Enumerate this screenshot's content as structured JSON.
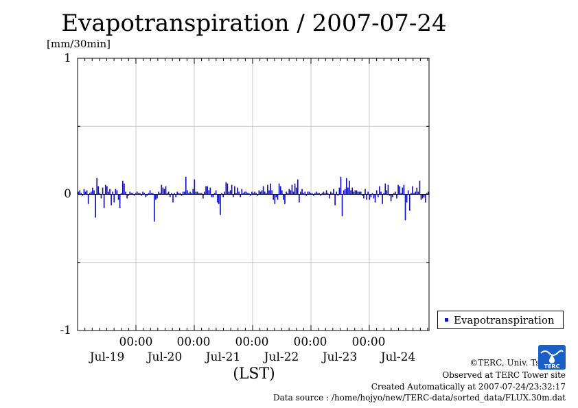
{
  "title": "Evapotranspiration / 2007-07-24",
  "unit_label": "[mm/30min]",
  "chart_data": {
    "type": "bar",
    "title": "Evapotranspiration / 2007-07-24",
    "ylabel": "[mm/30min]",
    "xlabel": "(LST)",
    "ylim": [
      -1,
      1
    ],
    "yticks": [
      "1",
      "0",
      "-1"
    ],
    "x_time_ticks": [
      "00:00",
      "00:00",
      "00:00",
      "00:00",
      "00:00"
    ],
    "x_day_ticks": [
      "Jul-19",
      "Jul-20",
      "Jul-21",
      "Jul-22",
      "Jul-23",
      "Jul-24"
    ],
    "grid": true,
    "legend_position": "bottom-right",
    "color": "#1010c0",
    "series": [
      {
        "name": "Evapotranspiration",
        "values": [
          0.02,
          0.03,
          0.01,
          -0.01,
          0.04,
          0.02,
          0.03,
          -0.07,
          0.01,
          0.02,
          0.05,
          0.03,
          -0.17,
          0.12,
          0.06,
          0.01,
          -0.03,
          0.05,
          -0.1,
          0.07,
          0.06,
          0.02,
          0.04,
          -0.08,
          0.02,
          -0.06,
          0.04,
          0.03,
          -0.04,
          -0.1,
          0.01,
          0.1,
          0.08,
          0.02,
          -0.03,
          -0.01,
          0.02,
          0.01,
          0.01,
          -0.01,
          0.01,
          0.02,
          0.01,
          0.01,
          -0.01,
          0.02,
          0.01,
          -0.02,
          -0.01,
          0.01,
          0.03,
          0.01,
          0.01,
          -0.2,
          -0.04,
          -0.03,
          0.02,
          0.01,
          0.07,
          0.05,
          0.04,
          0.06,
          0.01,
          0.02,
          -0.02,
          0.01,
          -0.06,
          0.01,
          -0.02,
          0.02,
          0.01,
          0.01,
          -0.01,
          0.02,
          0.02,
          0.13,
          0.03,
          0.01,
          0.02,
          0.01,
          0.04,
          0.11,
          0.02,
          0.02,
          0.01,
          0.01,
          0.01,
          -0.03,
          0.02,
          0.06,
          0.06,
          0.03,
          0.05,
          -0.02,
          -0.02,
          0.01,
          0.03,
          -0.06,
          -0.07,
          -0.15,
          0.01,
          -0.02,
          0.02,
          0.09,
          0.08,
          0.02,
          0.03,
          0.07,
          -0.02,
          0.06,
          0.01,
          0.05,
          0.02,
          -0.02,
          0.04,
          0.01,
          0.02,
          0.02,
          0.01,
          0.01,
          -0.01,
          0.02,
          0.01,
          0.02,
          0.01,
          -0.01,
          0.03,
          0.02,
          0.03,
          0.06,
          0.02,
          0.01,
          0.07,
          0.03,
          0.08,
          0.03,
          -0.04,
          -0.07,
          -0.02,
          -0.04,
          0.08,
          0.06,
          0.03,
          -0.04,
          -0.07,
          0.02,
          0.01,
          0.04,
          0.03,
          0.07,
          0.02,
          0.08,
          0.05,
          0.11,
          -0.06,
          0.02,
          0.04,
          0.01,
          0.02,
          -0.01,
          0.02,
          0.02,
          0.01,
          0.01,
          -0.01,
          0.01,
          0.02,
          0.01,
          0.01,
          -0.01,
          0.01,
          0.02,
          0.01,
          0.03,
          0.01,
          -0.03,
          0.02,
          0.01,
          0.04,
          -0.08,
          0.02,
          -0.01,
          0.05,
          0.13,
          -0.16,
          0.03,
          0.04,
          0.12,
          0.05,
          0.1,
          0.03,
          0.05,
          0.02,
          0.03,
          0.03,
          0.02,
          0.02,
          0.02,
          -0.01,
          -0.03,
          0.04,
          -0.04,
          0.02,
          -0.04,
          -0.02,
          0.01,
          -0.03,
          -0.06,
          0.03,
          -0.02,
          0.06,
          0.02,
          -0.07,
          0.01,
          0.08,
          0.03,
          0.07,
          -0.01,
          -0.05,
          -0.02,
          0.01,
          0.02,
          -0.03,
          0.07,
          0.06,
          0.01,
          0.05,
          0.07,
          -0.19,
          -0.06,
          0.03,
          -0.12,
          0.01,
          0.06,
          0.01,
          0.02,
          0.05,
          0.02,
          0.1,
          -0.04,
          -0.03,
          -0.02,
          -0.06,
          0.01,
          0.02
        ]
      }
    ]
  },
  "legend": {
    "label": "Evapotranspiration"
  },
  "credits": [
    "©TERC, Univ. Tsukuba",
    "Observed at TERC Tower site",
    "Created Automatically at 2007-07-24/23:32:17",
    "Data source : /home/hojyo/new/TERC-data/sorted_data/FLUX.30m.dat"
  ],
  "logo": {
    "icon": "terc-logo-icon",
    "text": "TERC",
    "color": "#1a5fc8"
  }
}
